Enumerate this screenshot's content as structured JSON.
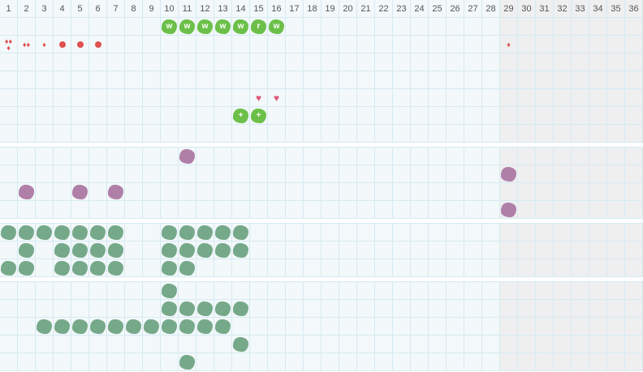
{
  "columns": [
    "1",
    "2",
    "3",
    "4",
    "5",
    "6",
    "7",
    "8",
    "9",
    "10",
    "11",
    "12",
    "13",
    "14",
    "15",
    "16",
    "17",
    "18",
    "19",
    "20",
    "21",
    "22",
    "23",
    "24",
    "25",
    "26",
    "27",
    "28",
    "29",
    "30",
    "31",
    "32",
    "33",
    "34",
    "35",
    "36"
  ],
  "future_from_column": 29,
  "colors": {
    "activity": "#6cc04a",
    "purple": "#b07fa8",
    "green": "#76a98a",
    "flow": "#e0514f",
    "heart": "#e0557a",
    "future_bg": "#efefef",
    "grid": "#d6eaf3"
  },
  "sections": [
    {
      "rows": [
        [
          {
            "col": 10,
            "type": "activity",
            "label": "w"
          },
          {
            "col": 11,
            "type": "activity",
            "label": "w"
          },
          {
            "col": 12,
            "type": "activity",
            "label": "w"
          },
          {
            "col": 13,
            "type": "activity",
            "label": "w"
          },
          {
            "col": 14,
            "type": "activity",
            "label": "w"
          },
          {
            "col": 15,
            "type": "activity",
            "label": "r"
          },
          {
            "col": 16,
            "type": "activity",
            "label": "w"
          }
        ],
        [
          {
            "col": 1,
            "type": "flow-heavy"
          },
          {
            "col": 2,
            "type": "flow-medium"
          },
          {
            "col": 3,
            "type": "flow-light"
          },
          {
            "col": 4,
            "type": "spotting"
          },
          {
            "col": 5,
            "type": "spotting"
          },
          {
            "col": 6,
            "type": "spotting"
          },
          {
            "col": 29,
            "type": "flow-light"
          }
        ],
        [],
        [],
        [
          {
            "col": 15,
            "type": "heart"
          },
          {
            "col": 16,
            "type": "heart"
          }
        ],
        [
          {
            "col": 14,
            "type": "activity",
            "label": "+"
          },
          {
            "col": 15,
            "type": "activity",
            "label": "+"
          }
        ],
        []
      ]
    },
    {
      "rows": [
        [
          {
            "col": 11,
            "type": "purple"
          }
        ],
        [
          {
            "col": 29,
            "type": "purple"
          }
        ],
        [
          {
            "col": 2,
            "type": "purple"
          },
          {
            "col": 5,
            "type": "purple"
          },
          {
            "col": 7,
            "type": "purple"
          }
        ],
        [
          {
            "col": 29,
            "type": "purple"
          }
        ]
      ]
    },
    {
      "rows": [
        [
          {
            "col": 1,
            "type": "green"
          },
          {
            "col": 2,
            "type": "green"
          },
          {
            "col": 3,
            "type": "green"
          },
          {
            "col": 4,
            "type": "green"
          },
          {
            "col": 5,
            "type": "green"
          },
          {
            "col": 6,
            "type": "green"
          },
          {
            "col": 7,
            "type": "green"
          },
          {
            "col": 10,
            "type": "green"
          },
          {
            "col": 11,
            "type": "green"
          },
          {
            "col": 12,
            "type": "green"
          },
          {
            "col": 13,
            "type": "green"
          },
          {
            "col": 14,
            "type": "green"
          }
        ],
        [
          {
            "col": 2,
            "type": "green"
          },
          {
            "col": 4,
            "type": "green"
          },
          {
            "col": 5,
            "type": "green"
          },
          {
            "col": 6,
            "type": "green"
          },
          {
            "col": 7,
            "type": "green"
          },
          {
            "col": 10,
            "type": "green"
          },
          {
            "col": 11,
            "type": "green"
          },
          {
            "col": 12,
            "type": "green"
          },
          {
            "col": 13,
            "type": "green"
          },
          {
            "col": 14,
            "type": "green"
          }
        ],
        [
          {
            "col": 1,
            "type": "green"
          },
          {
            "col": 2,
            "type": "green"
          },
          {
            "col": 4,
            "type": "green"
          },
          {
            "col": 5,
            "type": "green"
          },
          {
            "col": 6,
            "type": "green"
          },
          {
            "col": 7,
            "type": "green"
          },
          {
            "col": 10,
            "type": "green"
          },
          {
            "col": 11,
            "type": "green"
          }
        ]
      ]
    },
    {
      "rows": [
        [
          {
            "col": 10,
            "type": "green"
          }
        ],
        [
          {
            "col": 10,
            "type": "green"
          },
          {
            "col": 11,
            "type": "green"
          },
          {
            "col": 12,
            "type": "green"
          },
          {
            "col": 13,
            "type": "green"
          },
          {
            "col": 14,
            "type": "green"
          }
        ],
        [
          {
            "col": 3,
            "type": "green"
          },
          {
            "col": 4,
            "type": "green"
          },
          {
            "col": 5,
            "type": "green"
          },
          {
            "col": 6,
            "type": "green"
          },
          {
            "col": 7,
            "type": "green"
          },
          {
            "col": 8,
            "type": "green"
          },
          {
            "col": 9,
            "type": "green"
          },
          {
            "col": 10,
            "type": "green"
          },
          {
            "col": 11,
            "type": "green"
          },
          {
            "col": 12,
            "type": "green"
          },
          {
            "col": 13,
            "type": "green"
          }
        ],
        [
          {
            "col": 14,
            "type": "green"
          }
        ],
        [
          {
            "col": 11,
            "type": "green"
          }
        ]
      ]
    }
  ]
}
